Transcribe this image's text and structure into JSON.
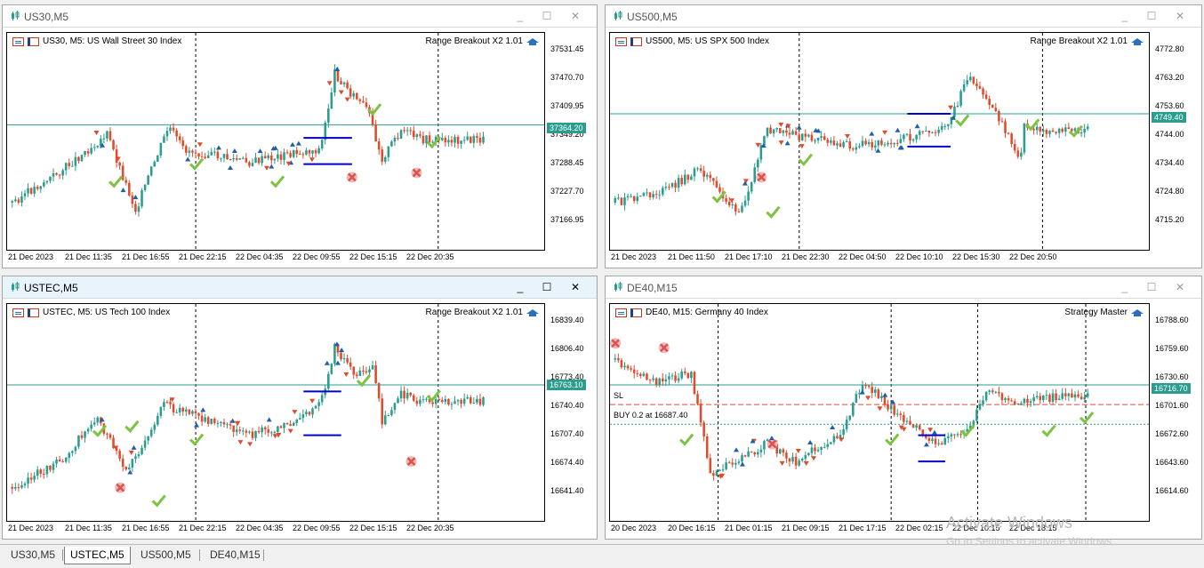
{
  "windows": [
    {
      "id": "us30",
      "title": "US30,M5",
      "header": "US30, M5:  US Wall Street 30 Index",
      "expert": "Range Breakout X2 1.01",
      "prices": [
        "37531.45",
        "37470.70",
        "37409.95",
        "37349.20",
        "37288.45",
        "37227.70",
        "37166.95"
      ],
      "current_price": "37364.20",
      "times": [
        "21 Dec 2023",
        "21 Dec 11:35",
        "21 Dec 16:55",
        "21 Dec 22:15",
        "22 Dec 04:35",
        "22 Dec 09:55",
        "22 Dec 15:15",
        "22 Dec 20:35"
      ]
    },
    {
      "id": "us500",
      "title": "US500,M5",
      "header": "US500, M5:  US SPX 500 Index",
      "expert": "Range Breakout X2 1.01",
      "prices": [
        "4772.80",
        "4763.20",
        "4753.60",
        "4744.00",
        "4734.40",
        "4724.80",
        "4715.20"
      ],
      "current_price": "4749.40",
      "times": [
        "21 Dec 2023",
        "21 Dec 11:50",
        "21 Dec 17:10",
        "21 Dec 22:30",
        "22 Dec 04:50",
        "22 Dec 10:10",
        "22 Dec 15:30",
        "22 Dec 20:50"
      ]
    },
    {
      "id": "ustec",
      "title": "USTEC,M5",
      "header": "USTEC, M5:  US Tech 100 Index",
      "expert": "Range Breakout X2 1.01",
      "prices": [
        "16839.40",
        "16806.40",
        "16773.40",
        "16740.40",
        "16707.40",
        "16674.40",
        "16641.40"
      ],
      "current_price": "16763.10",
      "times": [
        "21 Dec 2023",
        "21 Dec 11:35",
        "21 Dec 16:55",
        "21 Dec 22:15",
        "22 Dec 04:35",
        "22 Dec 09:55",
        "22 Dec 15:15",
        "22 Dec 20:35"
      ]
    },
    {
      "id": "de40",
      "title": "DE40,M15",
      "header": "DE40, M15:  Germany 40 Index",
      "expert": "Strategy Master",
      "prices": [
        "16788.60",
        "16759.60",
        "16730.60",
        "16701.60",
        "16672.60",
        "16643.60",
        "16614.60"
      ],
      "current_price": "16716.70",
      "times": [
        "20 Dec 2023",
        "20 Dec 16:15",
        "21 Dec 01:15",
        "21 Dec 09:15",
        "21 Dec 17:15",
        "22 Dec 02:15",
        "22 Dec 10:15",
        "22 Dec 18:15"
      ],
      "sl_label": "SL",
      "order_label": "BUY 0.2 at 16687.40"
    }
  ],
  "tabs": [
    "US30,M5",
    "USTEC,M5",
    "US500,M5",
    "DE40,M15"
  ],
  "active_tab": "USTEC,M5",
  "window_buttons": {
    "minimize": "_",
    "maximize": "☐",
    "close": "✕"
  },
  "watermark": {
    "title": "Activate Windows",
    "subtitle": "Go to Settings to activate Windows."
  },
  "colors": {
    "bull": "#2a9d8f",
    "bear": "#e04b2b",
    "price_line": "#2a9d8f",
    "range_box": "#0000cc",
    "buy_arrow": "#1f5fa8",
    "sell_arrow": "#e04b2b",
    "check": "#7dc242",
    "cross": "#d9534f"
  }
}
